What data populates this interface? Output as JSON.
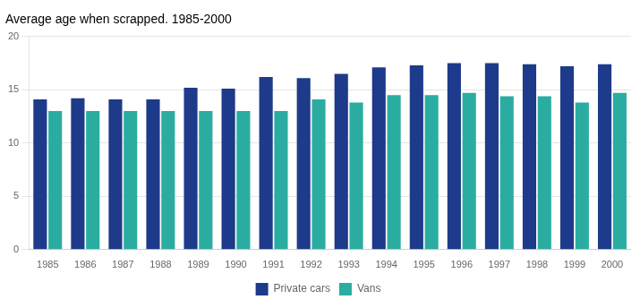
{
  "chart_data": {
    "type": "bar",
    "title": "Average age when scrapped. 1985-2000",
    "categories": [
      "1985",
      "1986",
      "1987",
      "1988",
      "1989",
      "1990",
      "1991",
      "1992",
      "1993",
      "1994",
      "1995",
      "1996",
      "1997",
      "1998",
      "1999",
      "2000"
    ],
    "series": [
      {
        "name": "Private cars",
        "color": "#1e3a8a",
        "values": [
          14.1,
          14.2,
          14.1,
          14.1,
          15.2,
          15.1,
          16.2,
          16.1,
          16.5,
          17.1,
          17.3,
          17.5,
          17.5,
          17.4,
          17.2,
          17.4
        ]
      },
      {
        "name": "Vans",
        "color": "#2aada0",
        "values": [
          13.0,
          13.0,
          13.0,
          13.0,
          13.0,
          13.0,
          13.0,
          14.1,
          13.8,
          14.5,
          14.5,
          14.7,
          14.4,
          14.4,
          13.8,
          14.7
        ]
      }
    ],
    "ylim": [
      0,
      20
    ],
    "yticks": [
      0,
      5,
      10,
      15,
      20
    ],
    "grid": true,
    "legend": "bottom"
  }
}
